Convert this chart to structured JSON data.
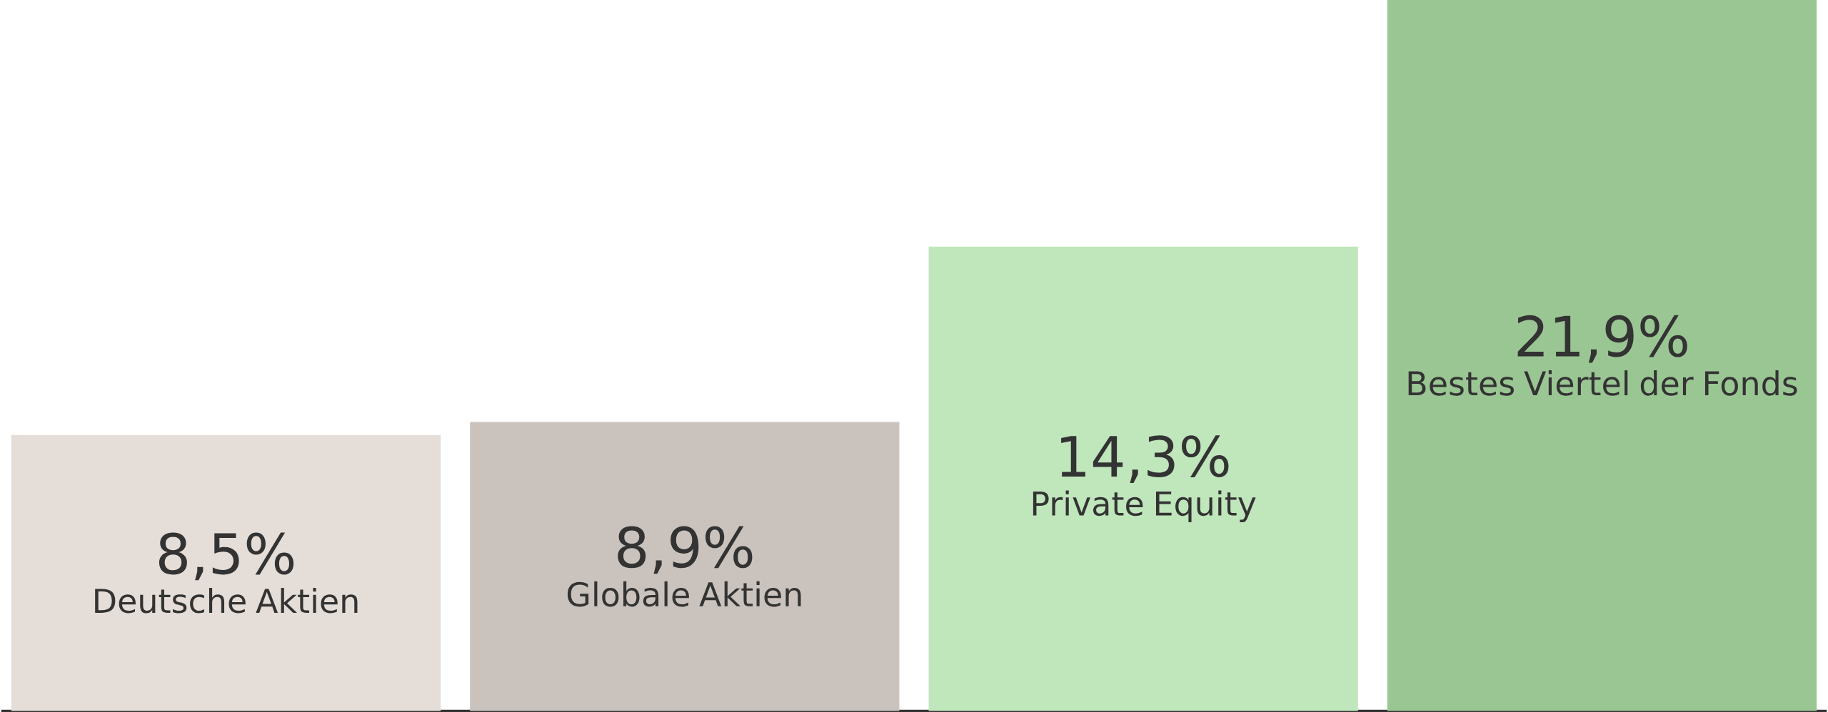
{
  "chart_data": {
    "type": "bar",
    "categories": [
      "Deutsche Aktien",
      "Globale Aktien",
      "Private Equity",
      "Bestes Viertel der Fonds"
    ],
    "values": [
      8.5,
      8.9,
      14.3,
      21.9
    ],
    "value_labels": [
      "8,5%",
      "8,9%",
      "14,3%",
      "21,9%"
    ],
    "colors": [
      "#e5ddd7",
      "#cac3bd",
      "#c0e6bc",
      "#9ac693"
    ]
  }
}
